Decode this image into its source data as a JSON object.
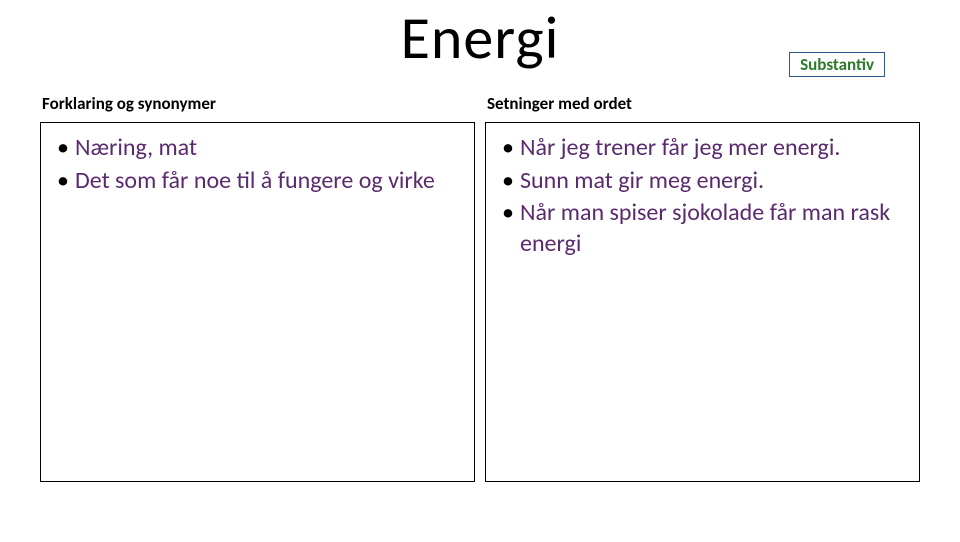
{
  "title": "Energi",
  "badge": "Substantiv",
  "left": {
    "header": "Forklaring og synonymer",
    "items": [
      "Næring, mat",
      "Det som får noe til å fungere og virke"
    ]
  },
  "right": {
    "header": "Setninger med ordet",
    "items": [
      "Når jeg trener får jeg mer energi.",
      "Sunn mat gir meg energi.",
      "Når man spiser sjokolade får man rask energi"
    ]
  },
  "colors": {
    "title_color": "#000000",
    "badge_border": "#2e5a8a",
    "badge_text": "#2c7a2c",
    "box_border": "#000000",
    "bullet_text": "#5a2a6e",
    "bullet_marker": "#000000",
    "background": "#ffffff"
  },
  "title_fontsize": 60,
  "header_fontsize": 17,
  "bullet_fontsize": 24
}
